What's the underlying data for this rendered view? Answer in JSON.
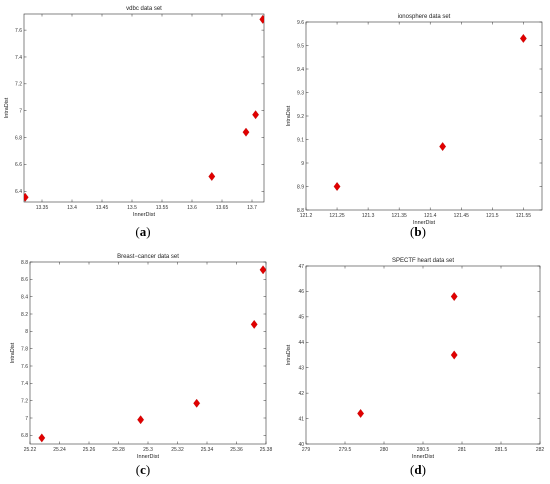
{
  "chart_data": [
    {
      "type": "scatter",
      "panel_label": "a",
      "title": "vdbc data set",
      "xlabel": "InnerDist",
      "ylabel": "IntraDist",
      "xlim": [
        13.32,
        13.72
      ],
      "ylim": [
        6.32,
        7.72
      ],
      "xticks": [
        "13.35",
        "13.4",
        "13.45",
        "13.5",
        "13.55",
        "13.6",
        "13.65",
        "13.7"
      ],
      "xtick_values": [
        13.35,
        13.4,
        13.45,
        13.5,
        13.55,
        13.6,
        13.65,
        13.7
      ],
      "yticks": [
        "6.4",
        "6.6",
        "6.8",
        "7",
        "7.2",
        "7.4",
        "7.6"
      ],
      "ytick_values": [
        6.4,
        6.6,
        6.8,
        7.0,
        7.2,
        7.4,
        7.6
      ],
      "marker_color": "#e00000",
      "points": [
        {
          "x": 13.322,
          "y": 6.355
        },
        {
          "x": 13.633,
          "y": 6.51
        },
        {
          "x": 13.69,
          "y": 6.84
        },
        {
          "x": 13.706,
          "y": 6.97
        },
        {
          "x": 13.718,
          "y": 7.68
        }
      ]
    },
    {
      "type": "scatter",
      "panel_label": "b",
      "title": "ionosphere data set",
      "xlabel": "InnerDist",
      "ylabel": "IntraDist",
      "xlim": [
        121.2,
        121.58
      ],
      "ylim": [
        8.8,
        9.6
      ],
      "xticks": [
        "121.2",
        "121.25",
        "121.3",
        "121.35",
        "121.4",
        "121.45",
        "121.5",
        "121.55"
      ],
      "xtick_values": [
        121.2,
        121.25,
        121.3,
        121.35,
        121.4,
        121.45,
        121.5,
        121.55
      ],
      "yticks": [
        "8.8",
        "8.9",
        "9",
        "9.1",
        "9.2",
        "9.3",
        "9.4",
        "9.5",
        "9.6"
      ],
      "ytick_values": [
        8.8,
        8.9,
        9.0,
        9.1,
        9.2,
        9.3,
        9.4,
        9.5,
        9.6
      ],
      "marker_color": "#e00000",
      "points": [
        {
          "x": 121.25,
          "y": 8.9
        },
        {
          "x": 121.42,
          "y": 9.07
        },
        {
          "x": 121.55,
          "y": 9.53
        }
      ]
    },
    {
      "type": "scatter",
      "panel_label": "c",
      "title": "Breast−cancer data set",
      "xlabel": "InnerDist",
      "ylabel": "IntraDist",
      "xlim": [
        25.22,
        25.38
      ],
      "ylim": [
        6.7,
        8.8
      ],
      "xticks": [
        "25.22",
        "25.24",
        "25.26",
        "25.28",
        "25.3",
        "25.32",
        "25.34",
        "25.36",
        "25.38"
      ],
      "xtick_values": [
        25.22,
        25.24,
        25.26,
        25.28,
        25.3,
        25.32,
        25.34,
        25.36,
        25.38
      ],
      "yticks": [
        "6.8",
        "7",
        "7.2",
        "7.4",
        "7.6",
        "7.8",
        "8",
        "8.2",
        "8.4",
        "8.6",
        "8.8"
      ],
      "ytick_values": [
        6.8,
        7.0,
        7.2,
        7.4,
        7.6,
        7.8,
        8.0,
        8.2,
        8.4,
        8.6,
        8.8
      ],
      "marker_color": "#e00000",
      "points": [
        {
          "x": 25.228,
          "y": 6.77
        },
        {
          "x": 25.295,
          "y": 6.98
        },
        {
          "x": 25.333,
          "y": 7.17
        },
        {
          "x": 25.372,
          "y": 8.08
        },
        {
          "x": 25.378,
          "y": 8.71
        }
      ]
    },
    {
      "type": "scatter",
      "panel_label": "d",
      "title": "SPECTF heart data set",
      "xlabel": "InnerDist",
      "ylabel": "IntraDist",
      "xlim": [
        279,
        282
      ],
      "ylim": [
        40,
        47
      ],
      "xticks": [
        "279",
        "279.5",
        "280",
        "280.5",
        "281",
        "281.5",
        "282"
      ],
      "xtick_values": [
        279,
        279.5,
        280,
        280.5,
        281,
        281.5,
        282
      ],
      "yticks": [
        "40",
        "41",
        "42",
        "43",
        "44",
        "45",
        "46",
        "47"
      ],
      "ytick_values": [
        40,
        41,
        42,
        43,
        44,
        45,
        46,
        47
      ],
      "marker_color": "#e00000",
      "points": [
        {
          "x": 279.7,
          "y": 41.2
        },
        {
          "x": 280.9,
          "y": 43.5
        },
        {
          "x": 280.9,
          "y": 45.8
        }
      ]
    }
  ]
}
